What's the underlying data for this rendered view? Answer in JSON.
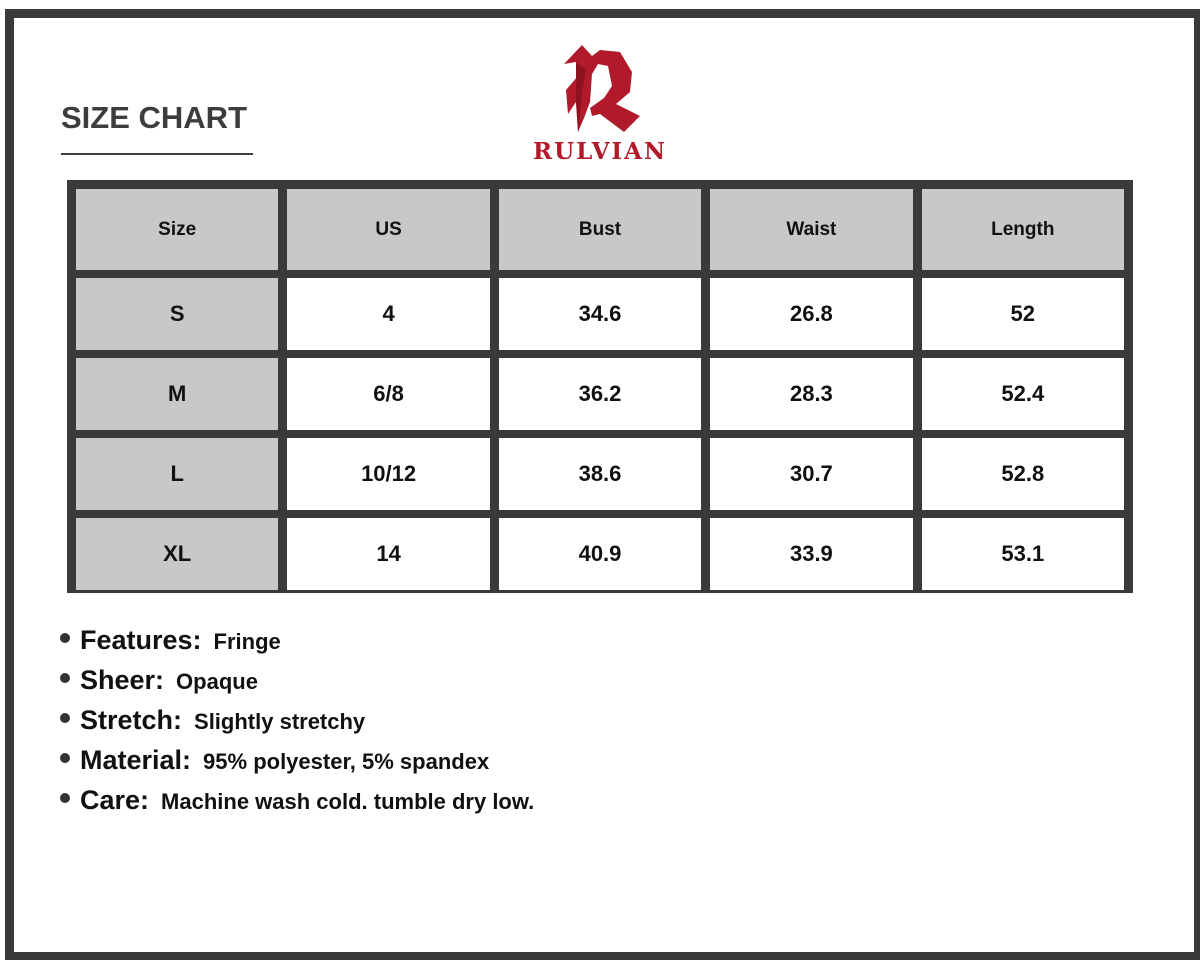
{
  "title": "SIZE CHART",
  "brand": {
    "name": "RULVIAN",
    "color": "#b01a2a"
  },
  "table": {
    "headers": [
      "Size",
      "US",
      "Bust",
      "Waist",
      "Length"
    ],
    "rows": [
      [
        "S",
        "4",
        "34.6",
        "26.8",
        "52"
      ],
      [
        "M",
        "6/8",
        "36.2",
        "28.3",
        "52.4"
      ],
      [
        "L",
        "10/12",
        "38.6",
        "30.7",
        "52.8"
      ],
      [
        "XL",
        "14",
        "40.9",
        "33.9",
        "53.1"
      ]
    ]
  },
  "features": [
    {
      "label": "Features:",
      "value": "Fringe"
    },
    {
      "label": "Sheer:",
      "value": "Opaque"
    },
    {
      "label": "Stretch:",
      "value": "Slightly stretchy"
    },
    {
      "label": "Material:",
      "value": "95% polyester, 5% spandex"
    },
    {
      "label": "Care:",
      "value": "Machine wash cold. tumble dry low."
    }
  ]
}
